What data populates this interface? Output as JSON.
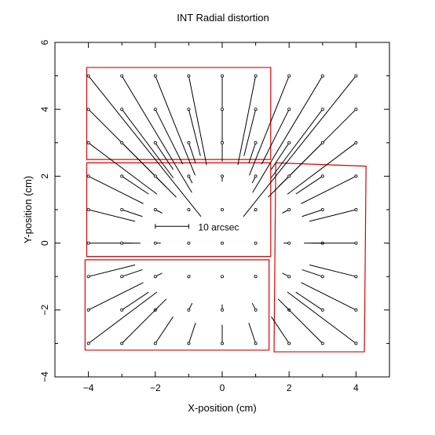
{
  "chart_data": {
    "type": "vector-field",
    "title": "INT Radial distortion",
    "xlabel": "X-position (cm)",
    "ylabel": "Y-position (cm)",
    "xlim": [
      -5,
      5
    ],
    "ylim": [
      -4,
      6
    ],
    "xticks": [
      -4,
      -2,
      0,
      2,
      4
    ],
    "xtick_labels": [
      "−4",
      "−2",
      "0",
      "2",
      "4"
    ],
    "yticks": [
      -4,
      -2,
      0,
      2,
      4,
      6
    ],
    "ytick_labels": [
      "−4",
      "−2",
      "0",
      "2",
      "4",
      "6"
    ],
    "grid": false,
    "scale_bar": {
      "label": "10 arcsec",
      "x_start": -2.0,
      "x_end": -1.0,
      "y": 0.5
    },
    "vectors": {
      "description_units": "cm in plot coordinates",
      "x_positions": [
        -4,
        -3,
        -2,
        -1,
        0,
        1,
        2,
        3,
        4
      ],
      "y_positions": [
        5,
        4,
        3,
        2,
        1,
        0,
        -1,
        -2,
        -3
      ],
      "radial_coefficient": 0.0038,
      "model": "vector from grid point (x,y) extends by k*r^2*(-x,-y) toward centre"
    },
    "ccd_outlines": [
      {
        "name": "CCD-top",
        "points": [
          [
            -4.05,
            5.25
          ],
          [
            1.45,
            5.25
          ],
          [
            1.45,
            2.5
          ],
          [
            -4.05,
            2.5
          ]
        ]
      },
      {
        "name": "CCD-middle",
        "points": [
          [
            -4.05,
            2.4
          ],
          [
            1.45,
            2.4
          ],
          [
            1.45,
            -0.4
          ],
          [
            -4.05,
            -0.4
          ]
        ]
      },
      {
        "name": "CCD-bottom",
        "points": [
          [
            -4.1,
            -0.5
          ],
          [
            1.4,
            -0.5
          ],
          [
            1.4,
            -3.2
          ],
          [
            -4.1,
            -3.2
          ]
        ]
      },
      {
        "name": "CCD-right",
        "points": [
          [
            1.6,
            2.4
          ],
          [
            4.3,
            2.3
          ],
          [
            4.25,
            -3.25
          ],
          [
            1.55,
            -3.25
          ]
        ]
      }
    ]
  }
}
